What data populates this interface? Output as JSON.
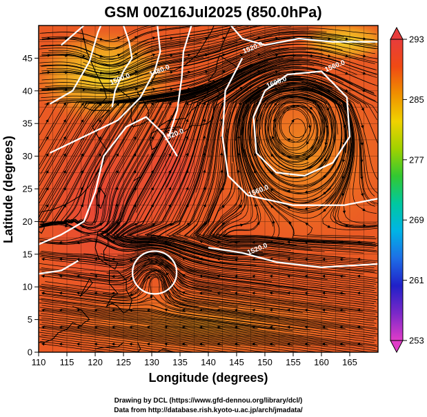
{
  "title": "GSM 00Z16Jul2025 (850.0hPa)",
  "credits": [
    "Drawing by DCL (https://www.gfd-dennou.org/library/dcl/)",
    "Data from http://database.rish.kyoto-u.ac.jp/arch/jmadata/"
  ],
  "chart_data": {
    "type": "heatmap",
    "title": "GSM 00Z16Jul2025 (850.0hPa)",
    "xlabel": "Longitude (degrees)",
    "ylabel": "Latitude (degrees)",
    "xlim": [
      110,
      170
    ],
    "ylim": [
      0,
      50
    ],
    "x_ticks": [
      110,
      115,
      120,
      125,
      130,
      135,
      140,
      145,
      150,
      155,
      160,
      165
    ],
    "y_ticks": [
      0,
      5,
      10,
      15,
      20,
      25,
      30,
      35,
      40,
      45
    ],
    "grid": true,
    "colorbar": {
      "range": [
        253,
        293
      ],
      "ticks": [
        253,
        261,
        269,
        277,
        285,
        293
      ],
      "stops": [
        "#e03cc8",
        "#7a28c8",
        "#2020c8",
        "#1e6ee6",
        "#00b4e6",
        "#00c8a0",
        "#32c832",
        "#a0d200",
        "#f0d200",
        "#f09000",
        "#f04a14",
        "#e83c3c"
      ],
      "placement": "right"
    },
    "contour_labels": [
      {
        "text": "1520.0",
        "lon": 148.8,
        "lat": 15.5
      },
      {
        "text": "1560.0",
        "lon": 149.0,
        "lat": 24.4
      },
      {
        "text": "1600.0",
        "lon": 152.2,
        "lat": 41.0
      },
      {
        "text": "1560.0",
        "lon": 162.5,
        "lat": 43.5
      },
      {
        "text": "1520.0",
        "lon": 148.0,
        "lat": 46.3
      },
      {
        "text": "1520.0",
        "lon": 134.0,
        "lat": 33.0
      },
      {
        "text": "1500.0",
        "lon": 124.5,
        "lat": 41.5
      },
      {
        "text": "1480.0",
        "lon": 131.5,
        "lat": 42.8
      }
    ]
  }
}
